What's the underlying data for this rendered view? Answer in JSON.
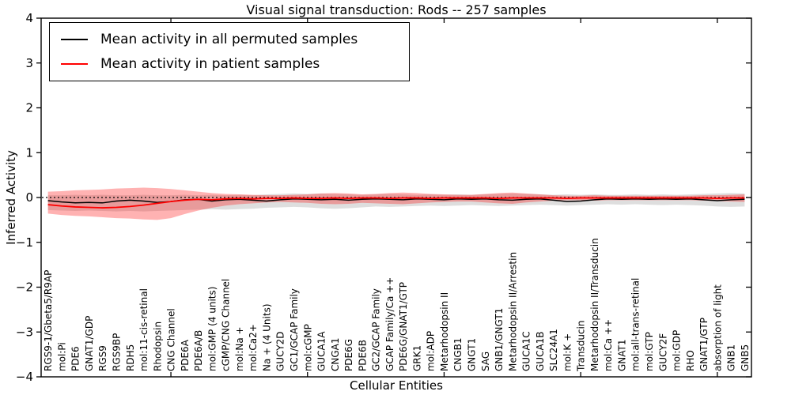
{
  "title": "Visual signal transduction: Rods -- 257 samples",
  "axes": {
    "xlabel": "Cellular Entities",
    "ylabel": "Inferred Activity"
  },
  "legend": {
    "position": "upper left",
    "entries": [
      {
        "label": "Mean activity in all permuted samples",
        "color": "#000000"
      },
      {
        "label": "Mean activity in patient samples",
        "color": "#ff0000"
      }
    ]
  },
  "chart_data": {
    "type": "line",
    "title": "Visual signal transduction: Rods -- 257 samples",
    "xlabel": "Cellular Entities",
    "ylabel": "Inferred Activity",
    "ylim": [
      -4,
      4
    ],
    "yticks": [
      4,
      3,
      2,
      1,
      0,
      -1,
      -2,
      -3,
      -4
    ],
    "xtick_positions": [
      10,
      20,
      30,
      40,
      50
    ],
    "grid": false,
    "legend_position": "upper left",
    "zero_line": {
      "y": 0,
      "style": "dotted",
      "color": "#000000"
    },
    "categories": [
      "RGS9-1/Gbeta5/R9AP",
      "mol:Pi",
      "PDE6",
      "GNAT1/GDP",
      "RGS9",
      "RGS9BP",
      "RDH5",
      "mol:11-cis-retinal",
      "Rhodopsin",
      "CNG Channel",
      "PDE6A",
      "PDE6A/B",
      "mol:GMP (4 units)",
      "cGMP/CNG Channel",
      "mol:Na +",
      "mol:Ca2+",
      "Na + (4 Units)",
      "GUCY2D",
      "GC1/GCAP Family",
      "mol:cGMP",
      "GUCA1A",
      "CNGA1",
      "PDE6G",
      "PDE6B",
      "GC2/GCAP Family",
      "GCAP Family/Ca ++",
      "PDE6G/GNAT1/GTP",
      "GRK1",
      "mol:ADP",
      "Metarhodopsin II",
      "CNGB1",
      "GNGT1",
      "SAG",
      "GNB1/GNGT1",
      "Metarhodopsin II/Arrestin",
      "GUCA1C",
      "GUCA1B",
      "SLC24A1",
      "mol:K +",
      "Transducin",
      "Metarhodopsin II/Transducin",
      "mol:Ca ++",
      "GNAT1",
      "mol:all-trans-retinal",
      "mol:GTP",
      "GUCY2F",
      "mol:GDP",
      "RHO",
      "GNAT1/GTP",
      "absorption of light",
      "GNB1",
      "GNB5"
    ],
    "series": [
      {
        "name": "Mean activity in all permuted samples",
        "color": "#000000",
        "band_color": "rgba(0,0,0,0.13)",
        "values": [
          -0.07,
          -0.1,
          -0.12,
          -0.11,
          -0.12,
          -0.08,
          -0.06,
          -0.08,
          -0.11,
          -0.09,
          -0.05,
          -0.04,
          -0.08,
          -0.05,
          -0.04,
          -0.06,
          -0.08,
          -0.05,
          -0.03,
          -0.04,
          -0.05,
          -0.04,
          -0.06,
          -0.04,
          -0.03,
          -0.04,
          -0.05,
          -0.03,
          -0.04,
          -0.05,
          -0.03,
          -0.04,
          -0.03,
          -0.05,
          -0.06,
          -0.04,
          -0.03,
          -0.06,
          -0.09,
          -0.08,
          -0.05,
          -0.03,
          -0.04,
          -0.03,
          -0.04,
          -0.03,
          -0.04,
          -0.03,
          -0.05,
          -0.07,
          -0.05,
          -0.04
        ],
        "band_upper": [
          0.05,
          0.05,
          0.06,
          0.05,
          0.06,
          0.05,
          0.05,
          0.06,
          0.05,
          0.05,
          0.06,
          0.05,
          0.06,
          0.05,
          0.06,
          0.05,
          0.07,
          0.08,
          0.09,
          0.08,
          0.09,
          0.08,
          0.07,
          0.06,
          0.07,
          0.08,
          0.07,
          0.06,
          0.07,
          0.06,
          0.07,
          0.06,
          0.07,
          0.08,
          0.09,
          0.08,
          0.07,
          0.06,
          0.07,
          0.06,
          0.07,
          0.06,
          0.06,
          0.07,
          0.06,
          0.07,
          0.06,
          0.07,
          0.08,
          0.09,
          0.1,
          0.09
        ],
        "band_lower": [
          -0.28,
          -0.29,
          -0.3,
          -0.29,
          -0.3,
          -0.31,
          -0.3,
          -0.31,
          -0.3,
          -0.29,
          -0.28,
          -0.27,
          -0.26,
          -0.27,
          -0.26,
          -0.25,
          -0.23,
          -0.22,
          -0.21,
          -0.22,
          -0.24,
          -0.25,
          -0.24,
          -0.22,
          -0.2,
          -0.21,
          -0.2,
          -0.19,
          -0.18,
          -0.19,
          -0.18,
          -0.17,
          -0.18,
          -0.19,
          -0.18,
          -0.17,
          -0.16,
          -0.17,
          -0.18,
          -0.17,
          -0.16,
          -0.15,
          -0.16,
          -0.15,
          -0.16,
          -0.17,
          -0.16,
          -0.17,
          -0.18,
          -0.2,
          -0.21,
          -0.2
        ]
      },
      {
        "name": "Mean activity in patient samples",
        "color": "#ff0000",
        "band_color": "rgba(255,0,0,0.30)",
        "values": [
          -0.16,
          -0.19,
          -0.21,
          -0.22,
          -0.23,
          -0.22,
          -0.2,
          -0.17,
          -0.13,
          -0.09,
          -0.06,
          -0.04,
          -0.05,
          -0.03,
          -0.02,
          -0.03,
          -0.02,
          -0.02,
          -0.01,
          -0.02,
          -0.02,
          -0.01,
          -0.02,
          -0.01,
          -0.01,
          -0.02,
          -0.01,
          -0.01,
          -0.02,
          -0.01,
          -0.01,
          -0.01,
          -0.01,
          -0.02,
          -0.01,
          -0.01,
          -0.01,
          -0.01,
          -0.02,
          -0.01,
          -0.01,
          -0.01,
          -0.01,
          -0.01,
          -0.01,
          -0.01,
          -0.01,
          -0.01,
          -0.01,
          -0.02,
          -0.01,
          -0.01
        ],
        "band_upper": [
          0.13,
          0.14,
          0.16,
          0.17,
          0.18,
          0.2,
          0.21,
          0.22,
          0.21,
          0.19,
          0.16,
          0.13,
          0.1,
          0.08,
          0.07,
          0.06,
          0.05,
          0.05,
          0.06,
          0.07,
          0.09,
          0.1,
          0.09,
          0.07,
          0.08,
          0.1,
          0.11,
          0.1,
          0.08,
          0.07,
          0.06,
          0.06,
          0.08,
          0.1,
          0.11,
          0.09,
          0.07,
          0.05,
          0.04,
          0.04,
          0.05,
          0.04,
          0.04,
          0.04,
          0.04,
          0.04,
          0.04,
          0.04,
          0.05,
          0.05,
          0.06,
          0.07
        ],
        "band_lower": [
          -0.36,
          -0.39,
          -0.41,
          -0.42,
          -0.44,
          -0.46,
          -0.47,
          -0.49,
          -0.5,
          -0.46,
          -0.37,
          -0.29,
          -0.23,
          -0.18,
          -0.15,
          -0.13,
          -0.11,
          -0.1,
          -0.11,
          -0.12,
          -0.14,
          -0.15,
          -0.14,
          -0.12,
          -0.13,
          -0.14,
          -0.15,
          -0.13,
          -0.11,
          -0.1,
          -0.09,
          -0.09,
          -0.11,
          -0.13,
          -0.14,
          -0.11,
          -0.09,
          -0.07,
          -0.06,
          -0.06,
          -0.07,
          -0.06,
          -0.06,
          -0.06,
          -0.06,
          -0.06,
          -0.06,
          -0.06,
          -0.07,
          -0.08,
          -0.09,
          -0.1
        ]
      }
    ]
  }
}
